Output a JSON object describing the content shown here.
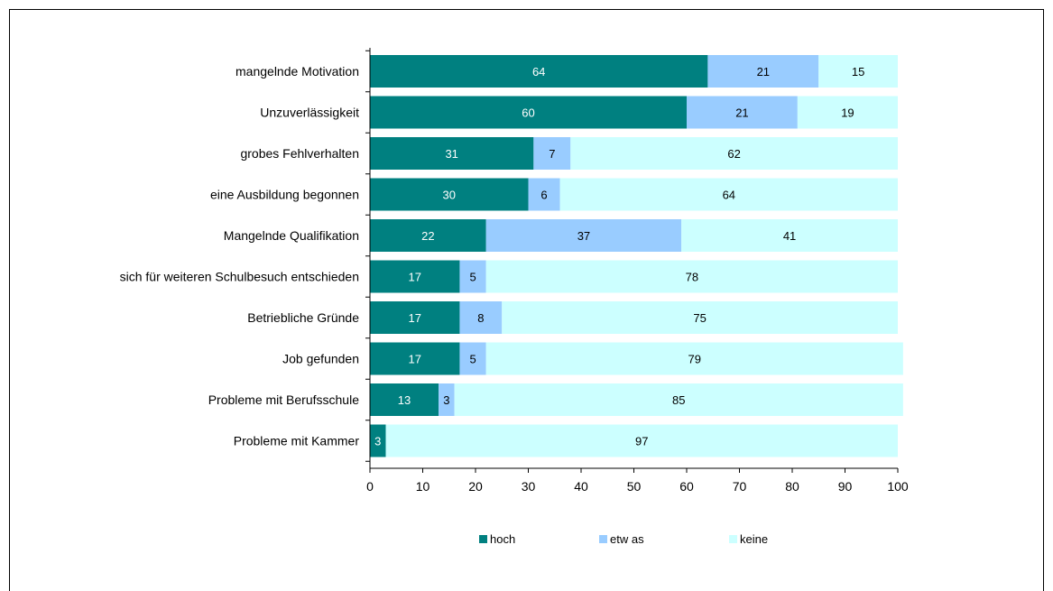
{
  "chart_data": {
    "type": "bar",
    "orientation": "horizontal",
    "stacked": true,
    "categories": [
      "mangelnde Motivation",
      "Unzuverlässigkeit",
      "grobes Fehlverhalten",
      "eine Ausbildung begonnen",
      "Mangelnde Qualifikation",
      "sich für weiteren Schulbesuch entschieden",
      "Betriebliche Gründe",
      "Job gefunden",
      "Probleme mit Berufsschule",
      "Probleme mit Kammer"
    ],
    "series": [
      {
        "name": "hoch",
        "color": "#008080",
        "label_color": "#ffffff",
        "values": [
          64,
          60,
          31,
          30,
          22,
          17,
          17,
          17,
          13,
          3
        ]
      },
      {
        "name": "etw as",
        "color": "#99ccff",
        "label_color": "#000000",
        "values": [
          21,
          21,
          7,
          6,
          37,
          5,
          8,
          5,
          3,
          0
        ]
      },
      {
        "name": "keine",
        "color": "#ccffff",
        "label_color": "#000000",
        "values": [
          15,
          19,
          62,
          64,
          41,
          78,
          75,
          79,
          85,
          97
        ]
      }
    ],
    "xlim": [
      0,
      100
    ],
    "xticks": [
      "0",
      "10",
      "20",
      "30",
      "40",
      "50",
      "60",
      "70",
      "80",
      "90",
      "100"
    ],
    "title": "",
    "xlabel": "",
    "ylabel": "",
    "grid": false,
    "legend_position": "bottom"
  }
}
